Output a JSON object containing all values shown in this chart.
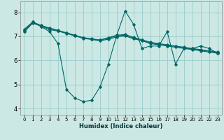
{
  "xlabel": "Humidex (Indice chaleur)",
  "bg_color": "#cce8e4",
  "line_color": "#006666",
  "grid_color": "#99cccc",
  "xlim": [
    -0.5,
    23.5
  ],
  "ylim": [
    3.75,
    8.45
  ],
  "yticks": [
    4,
    5,
    6,
    7,
    8
  ],
  "xticks": [
    0,
    1,
    2,
    3,
    4,
    5,
    6,
    7,
    8,
    9,
    10,
    11,
    12,
    13,
    14,
    15,
    16,
    17,
    18,
    19,
    20,
    21,
    22,
    23
  ],
  "lines": [
    {
      "x": [
        0,
        1,
        2,
        3,
        4,
        5,
        6,
        7,
        8,
        9,
        10,
        11,
        12,
        13,
        14,
        15,
        16,
        17,
        18,
        19,
        20,
        21,
        22,
        23
      ],
      "y": [
        7.2,
        7.6,
        7.4,
        7.2,
        6.7,
        4.8,
        4.45,
        4.3,
        4.35,
        4.9,
        5.85,
        7.05,
        8.05,
        7.5,
        6.5,
        6.6,
        6.6,
        7.2,
        5.85,
        6.5,
        6.5,
        6.6,
        6.5,
        6.3
      ]
    },
    {
      "x": [
        0,
        1,
        2,
        3,
        4,
        5,
        6,
        7,
        8,
        9,
        10,
        11,
        12,
        13,
        14,
        15,
        16,
        17,
        18,
        19,
        20,
        21,
        22,
        23
      ],
      "y": [
        7.2,
        7.55,
        7.42,
        7.28,
        7.22,
        7.12,
        7.02,
        6.92,
        6.87,
        6.82,
        6.88,
        6.98,
        7.02,
        6.9,
        6.82,
        6.7,
        6.65,
        6.6,
        6.55,
        6.5,
        6.45,
        6.4,
        6.35,
        6.3
      ]
    },
    {
      "x": [
        0,
        1,
        2,
        3,
        4,
        5,
        6,
        7,
        8,
        9,
        10,
        11,
        12,
        13,
        14,
        15,
        16,
        17,
        18,
        19,
        20,
        21,
        22,
        23
      ],
      "y": [
        7.25,
        7.58,
        7.44,
        7.32,
        7.24,
        7.14,
        7.04,
        6.94,
        6.89,
        6.84,
        6.92,
        7.02,
        7.05,
        6.93,
        6.84,
        6.73,
        6.68,
        6.63,
        6.58,
        6.53,
        6.48,
        6.43,
        6.38,
        6.33
      ]
    },
    {
      "x": [
        0,
        1,
        2,
        3,
        4,
        5,
        6,
        7,
        8,
        9,
        10,
        11,
        12,
        13,
        14,
        15,
        16,
        17,
        18,
        19,
        20,
        21,
        22,
        23
      ],
      "y": [
        7.3,
        7.6,
        7.45,
        7.35,
        7.25,
        7.15,
        7.05,
        6.95,
        6.9,
        6.85,
        6.95,
        7.05,
        7.08,
        6.96,
        6.86,
        6.76,
        6.7,
        6.65,
        6.6,
        6.55,
        6.5,
        6.45,
        6.4,
        6.35
      ]
    }
  ]
}
